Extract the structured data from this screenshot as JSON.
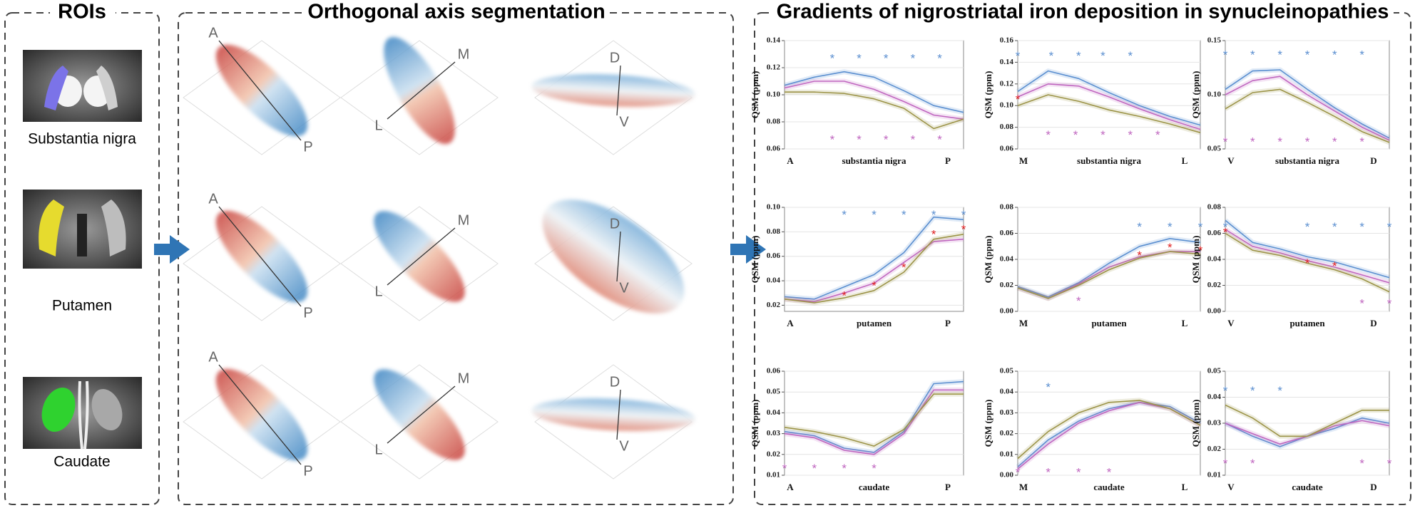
{
  "panels": {
    "rois": "ROIs",
    "segmentation": "Orthogonal axis segmentation",
    "gradients": "Gradients of nigrostriatal iron deposition in synucleinopathies"
  },
  "rois": [
    "Substantia nigra",
    "Putamen",
    "Caudate"
  ],
  "segmentation": [
    {
      "start": "A",
      "end": "P"
    },
    {
      "start": "M",
      "end": "L"
    },
    {
      "start": "D",
      "end": "V"
    },
    {
      "start": "A",
      "end": "P"
    },
    {
      "start": "M",
      "end": "L"
    },
    {
      "start": "D",
      "end": "V"
    },
    {
      "start": "A",
      "end": "P"
    },
    {
      "start": "M",
      "end": "L"
    },
    {
      "start": "D",
      "end": "V"
    }
  ],
  "chart_data": [
    {
      "type": "line",
      "ylabel": "QSM (ppm)",
      "x_start": "A",
      "xlabel": "substantia nigra",
      "x_end": "P",
      "ylim": [
        0.06,
        0.14
      ],
      "yticks": [
        0.06,
        0.08,
        {
          "value": 0.1,
          "label": "0.10"
        },
        0.12,
        0.14
      ],
      "grid": true,
      "series": [
        {
          "color": "#5b8fd0",
          "values": [
            0.107,
            0.113,
            0.117,
            0.113,
            0.103,
            0.092,
            0.087
          ]
        },
        {
          "color": "#c067c0",
          "values": [
            0.105,
            0.11,
            0.11,
            0.104,
            0.095,
            0.085,
            0.082
          ]
        },
        {
          "color": "#9c9448",
          "values": [
            0.102,
            0.102,
            0.101,
            0.097,
            0.09,
            0.075,
            0.082
          ]
        }
      ],
      "annotations": [
        {
          "text": "*",
          "color": "#5b8fd0",
          "x": [
            1.6,
            2.5,
            3.4,
            4.3,
            5.2
          ],
          "y": [
            0.128,
            0.128,
            0.128,
            0.128,
            0.128
          ]
        },
        {
          "text": "*",
          "color": "#c067c0",
          "x": [
            1.6,
            2.5,
            3.4,
            4.3,
            5.2
          ],
          "y": [
            0.068,
            0.068,
            0.068,
            0.068,
            0.068
          ]
        }
      ]
    },
    {
      "type": "line",
      "ylabel": "QSM (ppm)",
      "x_start": "M",
      "xlabel": "substantia nigra",
      "x_end": "L",
      "ylim": [
        0.06,
        0.16
      ],
      "yticks": [
        0.06,
        0.08,
        {
          "value": 0.1,
          "label": "0.10"
        },
        0.12,
        0.14,
        0.16
      ],
      "grid": true,
      "series": [
        {
          "color": "#5b8fd0",
          "values": [
            0.113,
            0.132,
            0.125,
            0.112,
            0.1,
            0.09,
            0.082
          ]
        },
        {
          "color": "#c067c0",
          "values": [
            0.108,
            0.12,
            0.118,
            0.108,
            0.097,
            0.087,
            0.078
          ]
        },
        {
          "color": "#9c9448",
          "values": [
            0.1,
            0.11,
            0.104,
            0.096,
            0.09,
            0.083,
            0.075
          ]
        }
      ],
      "annotations": [
        {
          "text": "*",
          "color": "#5b8fd0",
          "x": [
            0,
            1.1,
            2.0,
            2.8,
            3.7
          ],
          "y": [
            0.147,
            0.147,
            0.147,
            0.147,
            0.147
          ]
        },
        {
          "text": "*",
          "color": "#e02020",
          "x": [
            0
          ],
          "y": [
            0.107
          ]
        },
        {
          "text": "*",
          "color": "#c067c0",
          "x": [
            1,
            1.9,
            2.8,
            3.7,
            4.6
          ],
          "y": [
            0.074,
            0.074,
            0.074,
            0.074,
            0.074
          ]
        }
      ]
    },
    {
      "type": "line",
      "ylabel": "QSM (ppm)",
      "x_start": "V",
      "xlabel": "substantia nigra",
      "x_end": "D",
      "ylim": [
        0.05,
        0.15
      ],
      "yticks": [
        0.05,
        {
          "value": 0.1,
          "label": "0.10"
        },
        0.15
      ],
      "grid": true,
      "series": [
        {
          "color": "#5b8fd0",
          "values": [
            0.105,
            0.122,
            0.123,
            0.105,
            0.088,
            0.073,
            0.06
          ]
        },
        {
          "color": "#c067c0",
          "values": [
            0.1,
            0.113,
            0.117,
            0.1,
            0.085,
            0.07,
            0.058
          ]
        },
        {
          "color": "#9c9448",
          "values": [
            0.087,
            0.102,
            0.105,
            0.093,
            0.08,
            0.066,
            0.056
          ]
        }
      ],
      "annotations": [
        {
          "text": "*",
          "color": "#5b8fd0",
          "x": [
            0,
            1,
            2,
            3,
            4,
            5
          ],
          "y": [
            0.138,
            0.138,
            0.138,
            0.138,
            0.138,
            0.138
          ]
        },
        {
          "text": "*",
          "color": "#c067c0",
          "x": [
            0,
            1,
            2,
            3,
            4,
            5
          ],
          "y": [
            0.058,
            0.058,
            0.058,
            0.058,
            0.058,
            0.058
          ]
        }
      ]
    },
    {
      "type": "line",
      "ylabel": "QSM (ppm)",
      "x_start": "A",
      "xlabel": "putamen",
      "x_end": "P",
      "ylim": [
        0.015,
        0.1
      ],
      "yticks": [
        0.02,
        0.04,
        0.06,
        0.08,
        {
          "value": 0.1,
          "label": "0.10"
        }
      ],
      "grid": true,
      "series": [
        {
          "color": "#5b8fd0",
          "values": [
            0.027,
            0.025,
            0.035,
            0.045,
            0.063,
            0.092,
            0.09
          ]
        },
        {
          "color": "#c067c0",
          "values": [
            0.025,
            0.023,
            0.03,
            0.038,
            0.055,
            0.072,
            0.074
          ]
        },
        {
          "color": "#9c9448",
          "values": [
            0.025,
            0.022,
            0.026,
            0.032,
            0.047,
            0.074,
            0.078
          ]
        }
      ],
      "annotations": [
        {
          "text": "*",
          "color": "#5b8fd0",
          "x": [
            2,
            3,
            4,
            5,
            6
          ],
          "y": [
            0.095,
            0.095,
            0.095,
            0.095,
            0.095
          ]
        },
        {
          "text": "*",
          "color": "#e02020",
          "x": [
            2,
            3,
            4,
            5,
            6
          ],
          "y": [
            0.029,
            0.037,
            0.052,
            0.079,
            0.083
          ]
        }
      ]
    },
    {
      "type": "line",
      "ylabel": "QSM (ppm)",
      "x_start": "M",
      "xlabel": "putamen",
      "x_end": "L",
      "ylim": [
        0,
        0.08
      ],
      "yticks": [
        {
          "value": 0,
          "label": "0.00"
        },
        0.02,
        0.04,
        0.06,
        0.08
      ],
      "grid": true,
      "series": [
        {
          "color": "#5b8fd0",
          "values": [
            0.019,
            0.011,
            0.022,
            0.037,
            0.05,
            0.056,
            0.053
          ]
        },
        {
          "color": "#c067c0",
          "values": [
            0.018,
            0.01,
            0.021,
            0.034,
            0.042,
            0.046,
            0.046
          ]
        },
        {
          "color": "#9c9448",
          "values": [
            0.018,
            0.01,
            0.02,
            0.032,
            0.041,
            0.046,
            0.044
          ]
        }
      ],
      "annotations": [
        {
          "text": "*",
          "color": "#5b8fd0",
          "x": [
            4,
            5,
            6
          ],
          "y": [
            0.066,
            0.066,
            0.066
          ]
        },
        {
          "text": "*",
          "color": "#e02020",
          "x": [
            4,
            5,
            6
          ],
          "y": [
            0.044,
            0.05,
            0.048
          ]
        },
        {
          "text": "*",
          "color": "#c067c0",
          "x": [
            2
          ],
          "y": [
            0.009
          ]
        }
      ]
    },
    {
      "type": "line",
      "ylabel": "QSM (ppm)",
      "x_start": "V",
      "xlabel": "putamen",
      "x_end": "D",
      "ylim": [
        0,
        0.08
      ],
      "yticks": [
        {
          "value": 0,
          "label": "0.00"
        },
        0.02,
        0.04,
        0.06,
        0.08
      ],
      "grid": true,
      "series": [
        {
          "color": "#5b8fd0",
          "values": [
            0.07,
            0.053,
            0.048,
            0.042,
            0.038,
            0.032,
            0.026
          ]
        },
        {
          "color": "#c067c0",
          "values": [
            0.063,
            0.05,
            0.045,
            0.039,
            0.034,
            0.028,
            0.022
          ]
        },
        {
          "color": "#9c9448",
          "values": [
            0.06,
            0.047,
            0.043,
            0.037,
            0.032,
            0.025,
            0.015
          ]
        }
      ],
      "annotations": [
        {
          "text": "*",
          "color": "#5b8fd0",
          "x": [
            0,
            3,
            4,
            5,
            6
          ],
          "y": [
            0.066,
            0.066,
            0.066,
            0.066,
            0.066
          ]
        },
        {
          "text": "*",
          "color": "#e02020",
          "x": [
            0,
            3,
            4
          ],
          "y": [
            0.062,
            0.038,
            0.036
          ]
        },
        {
          "text": "*",
          "color": "#c067c0",
          "x": [
            5,
            6
          ],
          "y": [
            0.007,
            0.007
          ]
        }
      ]
    },
    {
      "type": "line",
      "ylabel": "QSM (ppm)",
      "x_start": "A",
      "xlabel": "caudate",
      "x_end": "P",
      "ylim": [
        0.01,
        0.06
      ],
      "yticks": [
        0.01,
        0.02,
        0.03,
        0.04,
        0.05,
        0.06
      ],
      "grid": true,
      "series": [
        {
          "color": "#5b8fd0",
          "values": [
            0.031,
            0.029,
            0.023,
            0.021,
            0.031,
            0.054,
            0.055
          ]
        },
        {
          "color": "#c067c0",
          "values": [
            0.03,
            0.028,
            0.022,
            0.02,
            0.03,
            0.051,
            0.051
          ]
        },
        {
          "color": "#9c9448",
          "values": [
            0.033,
            0.031,
            0.028,
            0.024,
            0.032,
            0.049,
            0.049
          ]
        }
      ],
      "annotations": [
        {
          "text": "*",
          "color": "#c067c0",
          "x": [
            0,
            1,
            2,
            3
          ],
          "y": [
            0.014,
            0.014,
            0.014,
            0.014
          ]
        }
      ]
    },
    {
      "type": "line",
      "ylabel": "QSM (ppm)",
      "x_start": "M",
      "xlabel": "caudate",
      "x_end": "L",
      "ylim": [
        0,
        0.05
      ],
      "yticks": [
        {
          "value": 0,
          "label": "0.00"
        },
        0.01,
        0.02,
        0.03,
        0.04,
        0.05
      ],
      "grid": true,
      "series": [
        {
          "color": "#5b8fd0",
          "values": [
            0.004,
            0.017,
            0.026,
            0.032,
            0.035,
            0.033,
            0.025
          ]
        },
        {
          "color": "#c067c0",
          "values": [
            0.003,
            0.015,
            0.025,
            0.031,
            0.035,
            0.032,
            0.024
          ]
        },
        {
          "color": "#9c9448",
          "values": [
            0.008,
            0.021,
            0.03,
            0.035,
            0.036,
            0.032,
            0.024
          ]
        }
      ],
      "annotations": [
        {
          "text": "*",
          "color": "#5b8fd0",
          "x": [
            1
          ],
          "y": [
            0.043
          ]
        },
        {
          "text": "*",
          "color": "#c067c0",
          "x": [
            0,
            1,
            2,
            3
          ],
          "y": [
            0.002,
            0.002,
            0.002,
            0.002
          ]
        }
      ]
    },
    {
      "type": "line",
      "ylabel": "QSM (ppm)",
      "x_start": "V",
      "xlabel": "caudate",
      "x_end": "D",
      "ylim": [
        0.01,
        0.05
      ],
      "yticks": [
        0.01,
        0.02,
        0.03,
        0.04,
        0.05
      ],
      "grid": true,
      "series": [
        {
          "color": "#5b8fd0",
          "values": [
            0.03,
            0.025,
            0.021,
            0.025,
            0.028,
            0.032,
            0.03
          ]
        },
        {
          "color": "#c067c0",
          "values": [
            0.03,
            0.026,
            0.022,
            0.025,
            0.029,
            0.031,
            0.029
          ]
        },
        {
          "color": "#9c9448",
          "values": [
            0.037,
            0.032,
            0.025,
            0.025,
            0.03,
            0.035,
            0.035
          ]
        }
      ],
      "annotations": [
        {
          "text": "*",
          "color": "#5b8fd0",
          "x": [
            0,
            1,
            2
          ],
          "y": [
            0.043,
            0.043,
            0.043
          ]
        },
        {
          "text": "*",
          "color": "#c067c0",
          "x": [
            0,
            1,
            5,
            6
          ],
          "y": [
            0.015,
            0.015,
            0.015,
            0.015
          ]
        }
      ]
    }
  ]
}
